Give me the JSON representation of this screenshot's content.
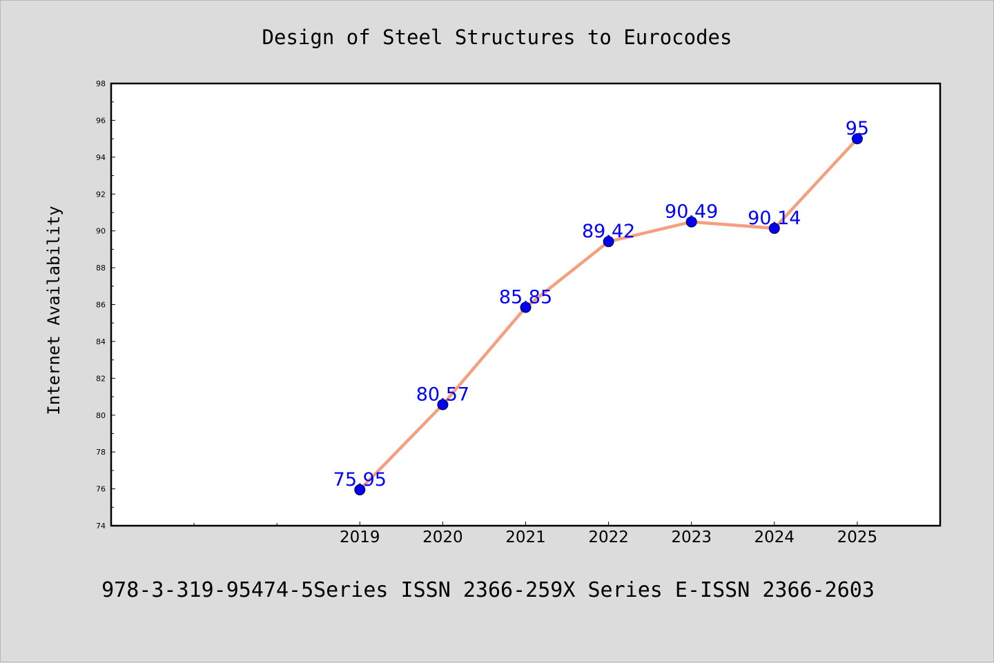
{
  "chart_data": {
    "type": "line",
    "title": "Design of Steel Structures to Eurocodes",
    "ylabel": "Internet Availability",
    "xlabel": "",
    "footer": "978-3-319-95474-5Series ISSN 2366-259X Series E-ISSN 2366-2603",
    "x": [
      "2019",
      "2020",
      "2021",
      "2022",
      "2023",
      "2024",
      "2025"
    ],
    "values": [
      75.95,
      80.57,
      85.85,
      89.42,
      90.49,
      90.14,
      95
    ],
    "data_labels": [
      "75.95",
      "80.57",
      "85.85",
      "89.42",
      "90.49",
      "90.14",
      "95"
    ],
    "ylim": [
      74,
      98
    ],
    "yticks": [
      "74",
      "76",
      "78",
      "80",
      "82",
      "84",
      "86",
      "88",
      "90",
      "92",
      "94",
      "96",
      "98"
    ],
    "x_range": [
      2016,
      2026
    ],
    "grid": false,
    "legend": "none",
    "colors": {
      "background": "#dcdcdc",
      "plot_area": "#ffffff",
      "line": "#f4a07f",
      "marker": "#0000ee",
      "data_label": "#0000ff",
      "text": "#000000"
    }
  }
}
